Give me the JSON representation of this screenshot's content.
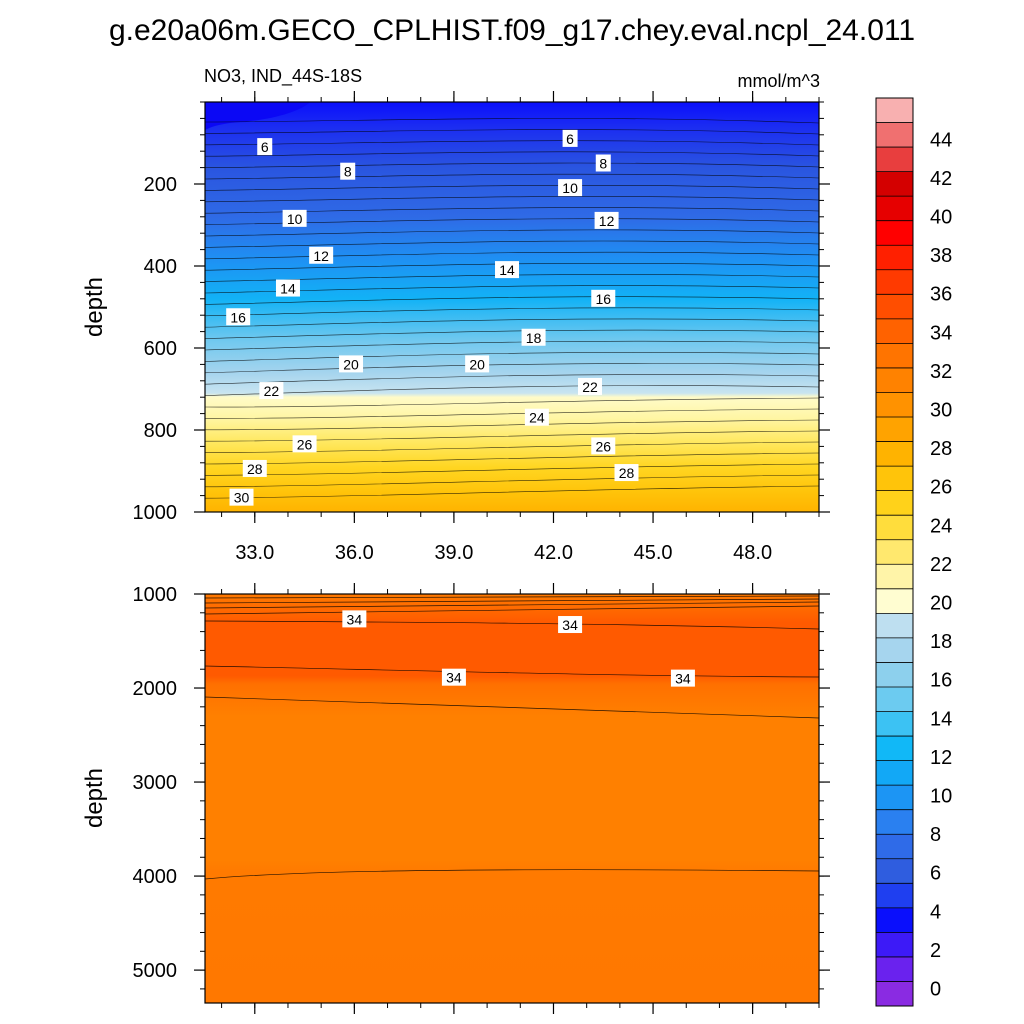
{
  "figure": {
    "title": "g.e20a06m.GECO_CPLHIST.f09_g17.chey.eval.ncpl_24.011",
    "subtitle_left": "NO3, IND_44S-18S",
    "subtitle_right": "mmol/m^3"
  },
  "chart_data": [
    {
      "type": "contour",
      "panel": "upper",
      "title": "NO3, IND_44S-18S",
      "units": "mmol/m^3",
      "xlabel": "",
      "ylabel": "depth",
      "xlim": [
        31.5,
        50.0
      ],
      "ylim": [
        1000,
        0
      ],
      "x_ticks": [
        33.0,
        36.0,
        39.0,
        42.0,
        45.0,
        48.0
      ],
      "x_tick_labels": [
        "33.0",
        "36.0",
        "39.0",
        "42.0",
        "45.0",
        "48.0"
      ],
      "y_ticks": [
        200,
        400,
        600,
        800,
        1000
      ],
      "y_tick_labels": [
        "200",
        "400",
        "600",
        "800",
        "1000"
      ],
      "contour_labels": [
        {
          "text": "6",
          "x": 33.3,
          "y": 110
        },
        {
          "text": "6",
          "x": 42.5,
          "y": 90
        },
        {
          "text": "8",
          "x": 35.8,
          "y": 170
        },
        {
          "text": "8",
          "x": 43.5,
          "y": 150
        },
        {
          "text": "10",
          "x": 34.2,
          "y": 285
        },
        {
          "text": "10",
          "x": 42.5,
          "y": 210
        },
        {
          "text": "12",
          "x": 35.0,
          "y": 375
        },
        {
          "text": "12",
          "x": 43.6,
          "y": 290
        },
        {
          "text": "14",
          "x": 34.0,
          "y": 455
        },
        {
          "text": "14",
          "x": 40.6,
          "y": 410
        },
        {
          "text": "16",
          "x": 32.5,
          "y": 525
        },
        {
          "text": "16",
          "x": 43.5,
          "y": 480
        },
        {
          "text": "18",
          "x": 41.4,
          "y": 575
        },
        {
          "text": "20",
          "x": 35.9,
          "y": 640
        },
        {
          "text": "20",
          "x": 39.7,
          "y": 640
        },
        {
          "text": "22",
          "x": 33.5,
          "y": 705
        },
        {
          "text": "22",
          "x": 43.1,
          "y": 695
        },
        {
          "text": "24",
          "x": 41.5,
          "y": 770
        },
        {
          "text": "26",
          "x": 34.5,
          "y": 835
        },
        {
          "text": "26",
          "x": 43.5,
          "y": 840
        },
        {
          "text": "28",
          "x": 33.0,
          "y": 895
        },
        {
          "text": "28",
          "x": 44.2,
          "y": 905
        },
        {
          "text": "30",
          "x": 32.6,
          "y": 965
        }
      ]
    },
    {
      "type": "contour",
      "panel": "lower",
      "xlabel": "",
      "ylabel": "depth",
      "xlim": [
        31.5,
        50.0
      ],
      "ylim": [
        5350,
        1000
      ],
      "x_ticks": [
        33.0,
        36.0,
        39.0,
        42.0,
        45.0,
        48.0
      ],
      "y_ticks": [
        1000,
        2000,
        3000,
        4000,
        5000
      ],
      "y_tick_labels": [
        "1000",
        "2000",
        "3000",
        "4000",
        "5000"
      ],
      "contour_labels": [
        {
          "text": "34",
          "x": 36.0,
          "y": 1270
        },
        {
          "text": "34",
          "x": 42.5,
          "y": 1330
        },
        {
          "text": "34",
          "x": 39.0,
          "y": 1890
        },
        {
          "text": "34",
          "x": 45.9,
          "y": 1900
        }
      ]
    }
  ],
  "colorbar": {
    "levels": [
      0,
      2,
      4,
      6,
      8,
      10,
      12,
      14,
      16,
      18,
      20,
      22,
      24,
      26,
      28,
      30,
      32,
      34,
      36,
      38,
      40,
      42,
      44
    ],
    "labels": [
      "0",
      "2",
      "4",
      "6",
      "8",
      "10",
      "12",
      "14",
      "16",
      "18",
      "20",
      "22",
      "24",
      "26",
      "28",
      "30",
      "32",
      "34",
      "36",
      "38",
      "40",
      "42",
      "44"
    ],
    "colors": [
      "#8a2be2",
      "#6a22ee",
      "#3d1af7",
      "#0a0ffc",
      "#1f3ff0",
      "#2f5ddf",
      "#2f6be8",
      "#2a80f0",
      "#1c95f4",
      "#12a8f6",
      "#11b8f7",
      "#3cc2f3",
      "#6ccbf0",
      "#8dd0ed",
      "#a6d5ee",
      "#bedff0",
      "#fffdd1",
      "#fff4a8",
      "#ffe86e",
      "#ffdd3c",
      "#ffd21a",
      "#ffc40a",
      "#ffb300",
      "#ffa300",
      "#ff9200",
      "#ff8200",
      "#ff7400",
      "#ff6200",
      "#ff4e00",
      "#ff3a00",
      "#ff2000",
      "#ff0000",
      "#e60000",
      "#d40000",
      "#e83e3e",
      "#f07070",
      "#f8b0b0"
    ]
  }
}
